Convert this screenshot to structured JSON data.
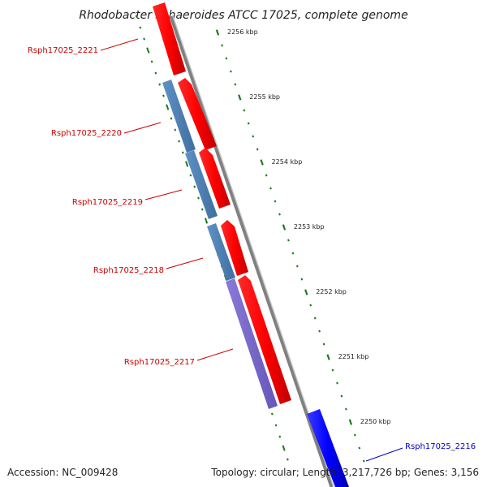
{
  "title": "Rhodobacter sphaeroides ATCC 17025, complete genome",
  "footer": {
    "accession": "Accession: NC_009428",
    "topology": "Topology: circular; Length: 3,217,726 bp; Genes: 3,156"
  },
  "scale": {
    "tick_labels": [
      "2256 kbp",
      "2255 kbp",
      "2254 kbp",
      "2253 kbp",
      "2252 kbp",
      "2251 kbp",
      "2250 kbp"
    ]
  },
  "genes": [
    {
      "label": "Rsph17025_2221",
      "color": "#cc0000"
    },
    {
      "label": "Rsph17025_2220",
      "color": "#cc0000"
    },
    {
      "label": "Rsph17025_2219",
      "color": "#cc0000"
    },
    {
      "label": "Rsph17025_2218",
      "color": "#cc0000"
    },
    {
      "label": "Rsph17025_2217",
      "color": "#cc0000"
    },
    {
      "label": "Rsph17025_2216",
      "color": "#0000cc"
    }
  ],
  "colors": {
    "forward_gene": "#ff0000",
    "reverse_gene": "#0000ff",
    "cds_feature": "#4f81bd",
    "cds_feature_alt": "#7b68c8",
    "backbone": "#808080",
    "tick": "#1a7a1a"
  }
}
